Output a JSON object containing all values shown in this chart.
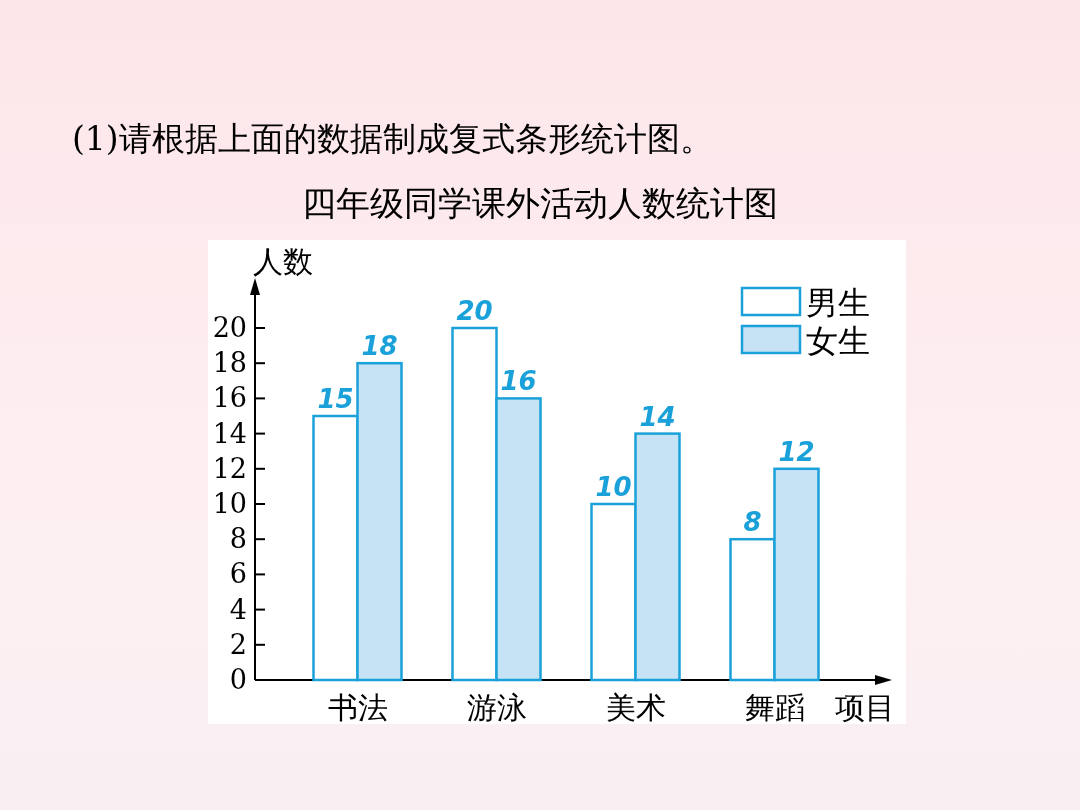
{
  "chart_data": {
    "type": "bar",
    "title": "四年级同学课外活动人数统计图",
    "annotations": [
      "(1)请根据上面的数据制成复式条形统计图。"
    ],
    "xlabel": "项目",
    "ylabel": "人数",
    "categories": [
      "书法",
      "游泳",
      "美术",
      "舞蹈"
    ],
    "series": [
      {
        "name": "男生",
        "color": "#ffffff",
        "values": [
          15,
          20,
          10,
          8
        ]
      },
      {
        "name": "女生",
        "color": "#c5e3f5",
        "values": [
          18,
          16,
          14,
          12
        ]
      }
    ],
    "ylim": [
      0,
      20
    ],
    "yticks": [
      0,
      2,
      4,
      6,
      8,
      10,
      12,
      14,
      16,
      18,
      20
    ],
    "data_labels": true,
    "legend": "top right",
    "grid": false
  }
}
